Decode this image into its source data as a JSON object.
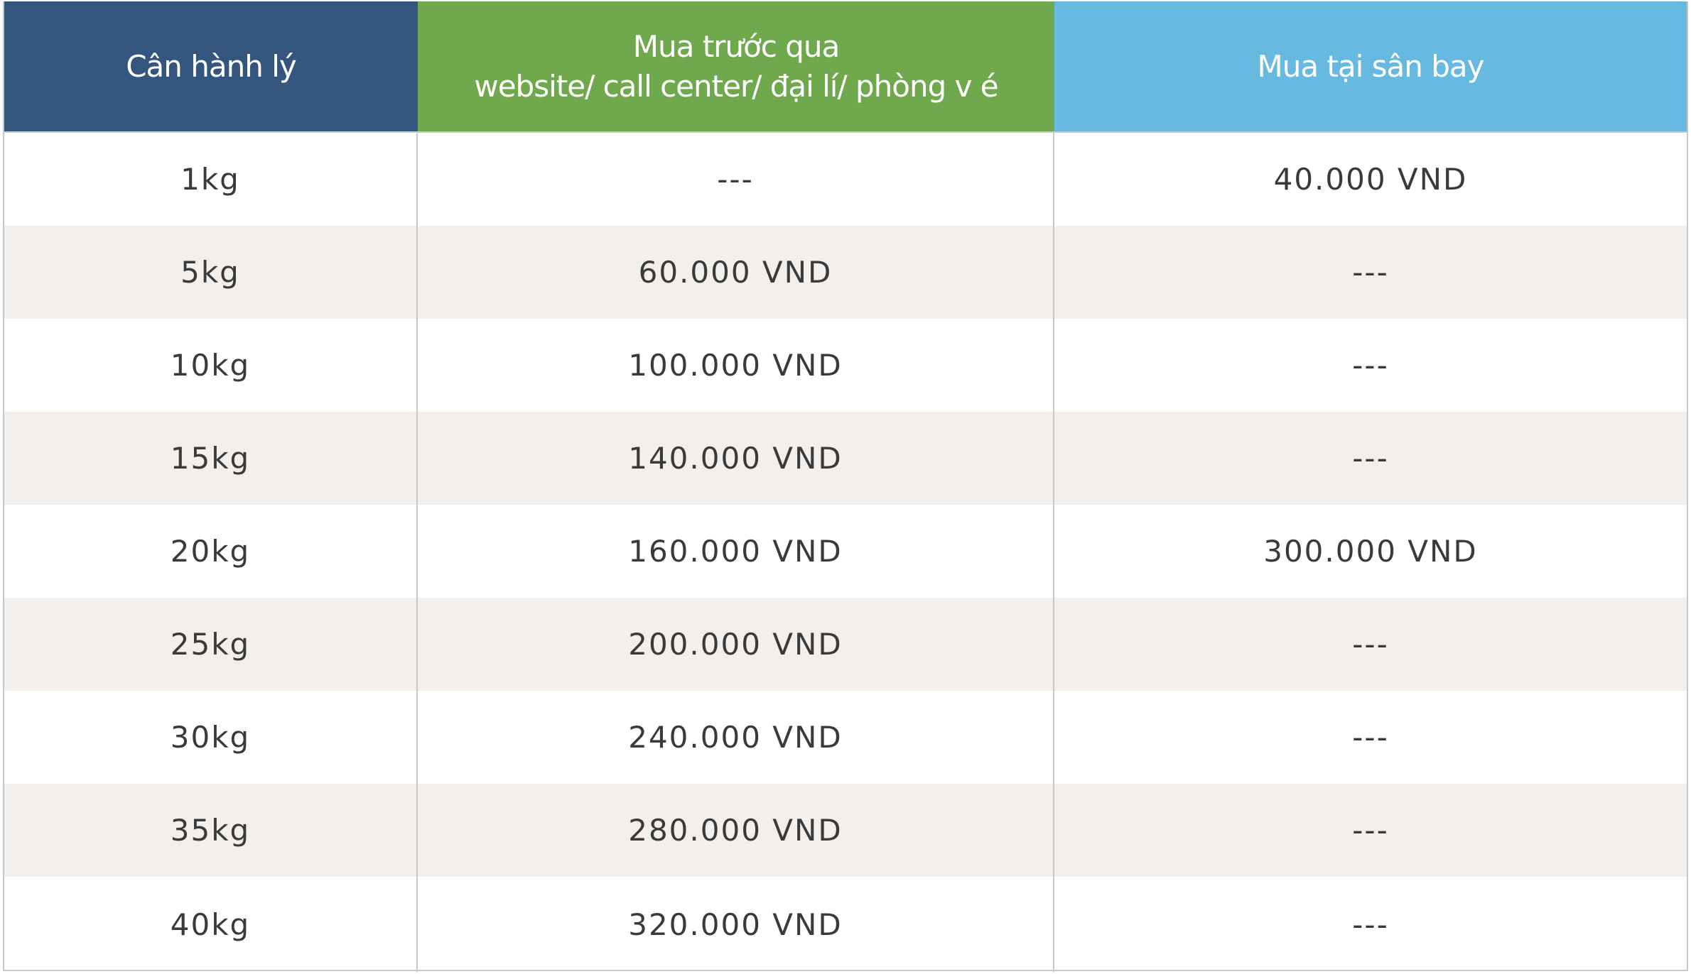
{
  "table": {
    "headers": {
      "weight": "Cân hành lý",
      "prepaid_line1": "Mua trước qua",
      "prepaid_line2": "website/ call center/ đại lí/ phòng v é",
      "airport": "Mua tại sân bay"
    },
    "rows": [
      {
        "weight": "1kg",
        "prepaid": "---",
        "airport": "40.000 VND"
      },
      {
        "weight": "5kg",
        "prepaid": "60.000 VND",
        "airport": "---"
      },
      {
        "weight": "10kg",
        "prepaid": "100.000 VND",
        "airport": "---"
      },
      {
        "weight": "15kg",
        "prepaid": "140.000 VND",
        "airport": "---"
      },
      {
        "weight": "20kg",
        "prepaid": "160.000 VND",
        "airport": "300.000 VND"
      },
      {
        "weight": "25kg",
        "prepaid": "200.000 VND",
        "airport": "---"
      },
      {
        "weight": "30kg",
        "prepaid": "240.000 VND",
        "airport": "---"
      },
      {
        "weight": "35kg",
        "prepaid": "280.000 VND",
        "airport": "---"
      },
      {
        "weight": "40kg",
        "prepaid": "320.000 VND",
        "airport": "---"
      }
    ]
  },
  "colors": {
    "header_weight": "#34557e",
    "header_prepaid": "#70a94d",
    "header_airport": "#68b9df",
    "shaded_row": "#f2efec"
  }
}
